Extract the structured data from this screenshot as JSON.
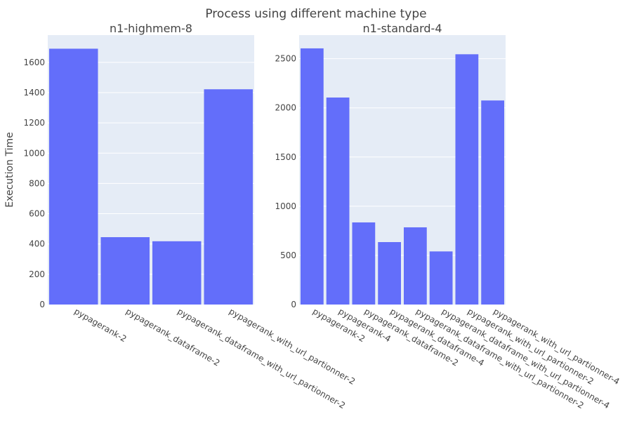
{
  "title": "Process using different machine type",
  "colors": {
    "bar": "#636efa",
    "plot_bg": "#e5ecf6",
    "grid": "#ffffff",
    "text": "#444444"
  },
  "chart_data": [
    {
      "type": "bar",
      "title": "n1-highmem-8",
      "ylabel": "Execution Time",
      "xlabel": "",
      "ylim": [
        0,
        1780
      ],
      "yticks": [
        0,
        200,
        400,
        600,
        800,
        1000,
        1200,
        1400,
        1600
      ],
      "grid": true,
      "categories": [
        "pypagerank-2",
        "pypagerank_dataframe-2",
        "pypagerank_dataframe_with_url_partionner-2",
        "pypagerank_with_url_partionner-2"
      ],
      "values": [
        1690,
        445,
        418,
        1422
      ]
    },
    {
      "type": "bar",
      "title": "n1-standard-4",
      "ylabel": "",
      "xlabel": "",
      "ylim": [
        0,
        2740
      ],
      "yticks": [
        0,
        500,
        1000,
        1500,
        2000,
        2500
      ],
      "grid": true,
      "categories": [
        "pypagerank-2",
        "pypagerank-4",
        "pypagerank_dataframe-2",
        "pypagerank_dataframe-4",
        "pypagerank_dataframe_with_url_partionner-2",
        "pypagerank_dataframe_with_url_partionner-4",
        "pypagerank_with_url_partionner-2",
        "pypagerank_with_url_partionner-4"
      ],
      "values": [
        2605,
        2105,
        835,
        635,
        785,
        540,
        2545,
        2075
      ]
    }
  ]
}
